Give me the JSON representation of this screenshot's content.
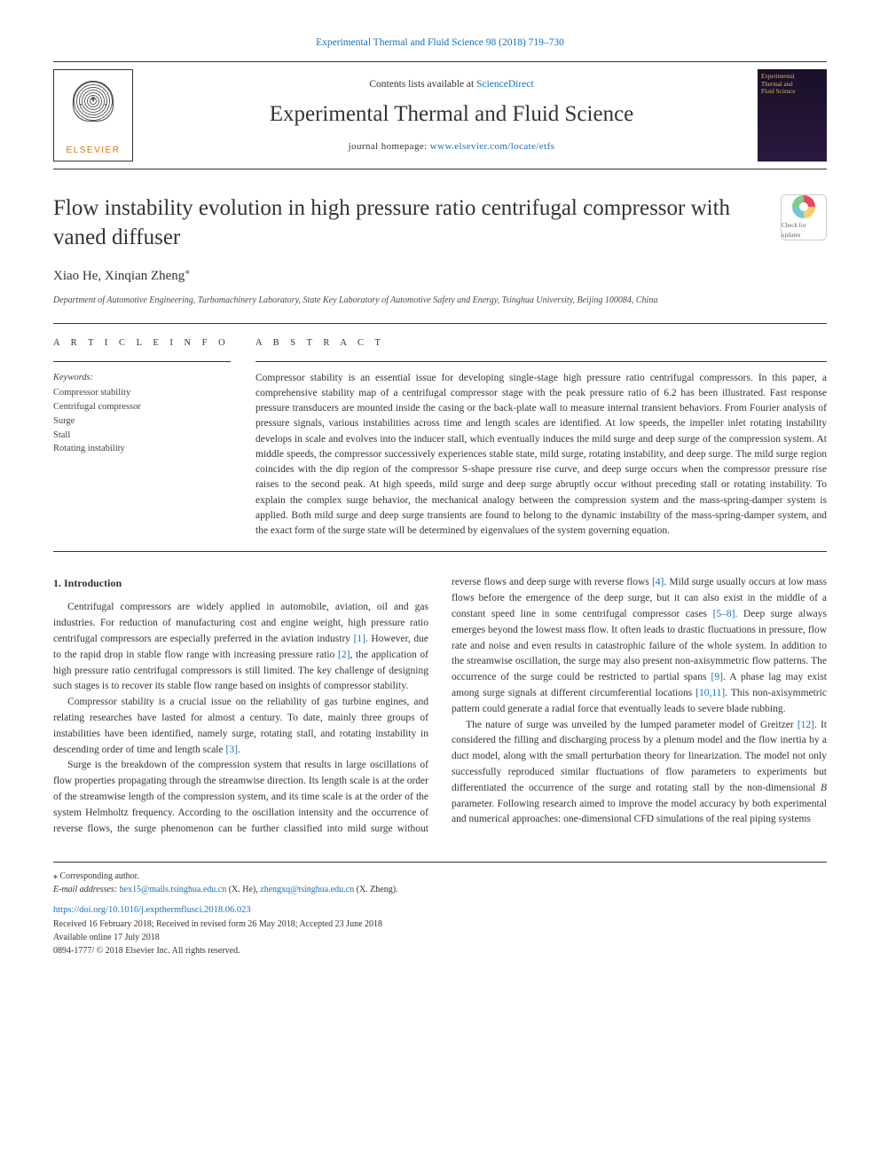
{
  "header": {
    "citation": "Experimental Thermal and Fluid Science 98 (2018) 719–730",
    "contents_prefix": "Contents lists available at ",
    "contents_link": "ScienceDirect",
    "journal_title": "Experimental Thermal and Fluid Science",
    "homepage_prefix": "journal homepage: ",
    "homepage_link": "www.elsevier.com/locate/etfs",
    "elsevier_name": "ELSEVIER",
    "cover_label_1": "Experimental",
    "cover_label_2": "Thermal and",
    "cover_label_3": "Fluid Science"
  },
  "article": {
    "title": "Flow instability evolution in high pressure ratio centrifugal compressor with vaned diffuser",
    "crossmark_label": "Check for updates",
    "authors": "Xiao He, Xinqian Zheng",
    "corr_mark": "⁎",
    "affiliation": "Department of Automotive Engineering, Turbomachinery Laboratory, State Key Laboratory of Automotive Safety and Energy, Tsinghua University, Beijing 100084, China"
  },
  "info": {
    "article_info_label": "A R T I C L E  I N F O",
    "abstract_label": "A B S T R A C T",
    "keywords_label": "Keywords:",
    "keywords": [
      "Compressor stability",
      "Centrifugal compressor",
      "Surge",
      "Stall",
      "Rotating instability"
    ]
  },
  "abstract": "Compressor stability is an essential issue for developing single-stage high pressure ratio centrifugal compressors. In this paper, a comprehensive stability map of a centrifugal compressor stage with the peak pressure ratio of 6.2 has been illustrated. Fast response pressure transducers are mounted inside the casing or the back-plate wall to measure internal transient behaviors. From Fourier analysis of pressure signals, various instabilities across time and length scales are identified. At low speeds, the impeller inlet rotating instability develops in scale and evolves into the inducer stall, which eventually induces the mild surge and deep surge of the compression system. At middle speeds, the compressor successively experiences stable state, mild surge, rotating instability, and deep surge. The mild surge region coincides with the dip region of the compressor S-shape pressure rise curve, and deep surge occurs when the compressor pressure rise raises to the second peak. At high speeds, mild surge and deep surge abruptly occur without preceding stall or rotating instability. To explain the complex surge behavior, the mechanical analogy between the compression system and the mass-spring-damper system is applied. Both mild surge and deep surge transients are found to belong to the dynamic instability of the mass-spring-damper system, and the exact form of the surge state will be determined by eigenvalues of the system governing equation.",
  "body": {
    "section_number": "1.",
    "section_title": "Introduction",
    "paragraphs": [
      {
        "text_parts": [
          {
            "t": "Centrifugal compressors are widely applied in automobile, aviation, oil and gas industries. For reduction of manufacturing cost and engine weight, high pressure ratio centrifugal compressors are especially preferred in the aviation industry "
          },
          {
            "ref": "[1]"
          },
          {
            "t": ". However, due to the rapid drop in stable flow range with increasing pressure ratio "
          },
          {
            "ref": "[2]"
          },
          {
            "t": ", the application of high pressure ratio centrifugal compressors is still limited. The key challenge of designing such stages is to recover its stable flow range based on insights of compressor stability."
          }
        ]
      },
      {
        "text_parts": [
          {
            "t": "Compressor stability is a crucial issue on the reliability of gas turbine engines, and relating researches have lasted for almost a century. To date, mainly three groups of instabilities have been identified, namely surge, rotating stall, and rotating instability in descending order of time and length scale "
          },
          {
            "ref": "[3]"
          },
          {
            "t": "."
          }
        ]
      },
      {
        "text_parts": [
          {
            "t": "Surge is the breakdown of the compression system that results in large oscillations of flow properties propagating through the streamwise direction. Its length scale is at the order of the streamwise length of the compression system, and its time scale is at the order of the system Helmholtz frequency. According to the oscillation intensity and the occurrence of reverse flows, the surge phenomenon can be further classified into mild surge without reverse flows and deep surge with reverse flows "
          },
          {
            "ref": "[4]"
          },
          {
            "t": ". Mild surge usually occurs at low mass flows before the emergence of the deep surge, but it can also exist in the middle of a constant speed line in some centrifugal compressor cases "
          },
          {
            "ref": "[5–8]"
          },
          {
            "t": ". Deep surge always emerges beyond the lowest mass flow. It often leads to drastic fluctuations in pressure, flow rate and noise and even results in catastrophic failure of the whole system. In addition to the streamwise oscillation, the surge may also present non-axisymmetric flow patterns. The occurrence of the surge could be restricted to partial spans "
          },
          {
            "ref": "[9]"
          },
          {
            "t": ". A phase lag may exist among surge signals at different circumferential locations "
          },
          {
            "ref": "[10,11]"
          },
          {
            "t": ". This non-axisymmetric pattern could generate a radial force that eventually leads to severe blade rubbing."
          }
        ]
      },
      {
        "text_parts": [
          {
            "t": "The nature of surge was unveiled by the lumped parameter model of Greitzer "
          },
          {
            "ref": "[12]"
          },
          {
            "t": ". It considered the filling and discharging process by a plenum model and the flow inertia by a duct model, along with the small perturbation theory for linearization. The model not only successfully reproduced similar fluctuations of flow parameters to experiments but differentiated the occurrence of the surge and rotating stall by the non-dimensional "
          },
          {
            "ital": "B"
          },
          {
            "t": " parameter. Following research aimed to improve the model accuracy by both experimental and numerical approaches: one-dimensional CFD simulations of the real piping systems"
          }
        ]
      }
    ]
  },
  "footer": {
    "corr_label": "⁎ Corresponding author.",
    "email_label": "E-mail addresses: ",
    "email1": "hex15@mails.tsinghua.edu.cn",
    "email1_name": " (X. He), ",
    "email2": "zhengxq@tsinghua.edu.cn",
    "email2_name": " (X. Zheng).",
    "doi": "https://doi.org/10.1016/j.expthermflusci.2018.06.023",
    "received": "Received 16 February 2018; Received in revised form 26 May 2018; Accepted 23 June 2018",
    "available": "Available online 17 July 2018",
    "copyright": "0894-1777/ © 2018 Elsevier Inc. All rights reserved."
  },
  "colors": {
    "link": "#1a6fb5",
    "text": "#333333",
    "elsevier_orange": "#e57300",
    "cover_bg": "#1a1028"
  }
}
